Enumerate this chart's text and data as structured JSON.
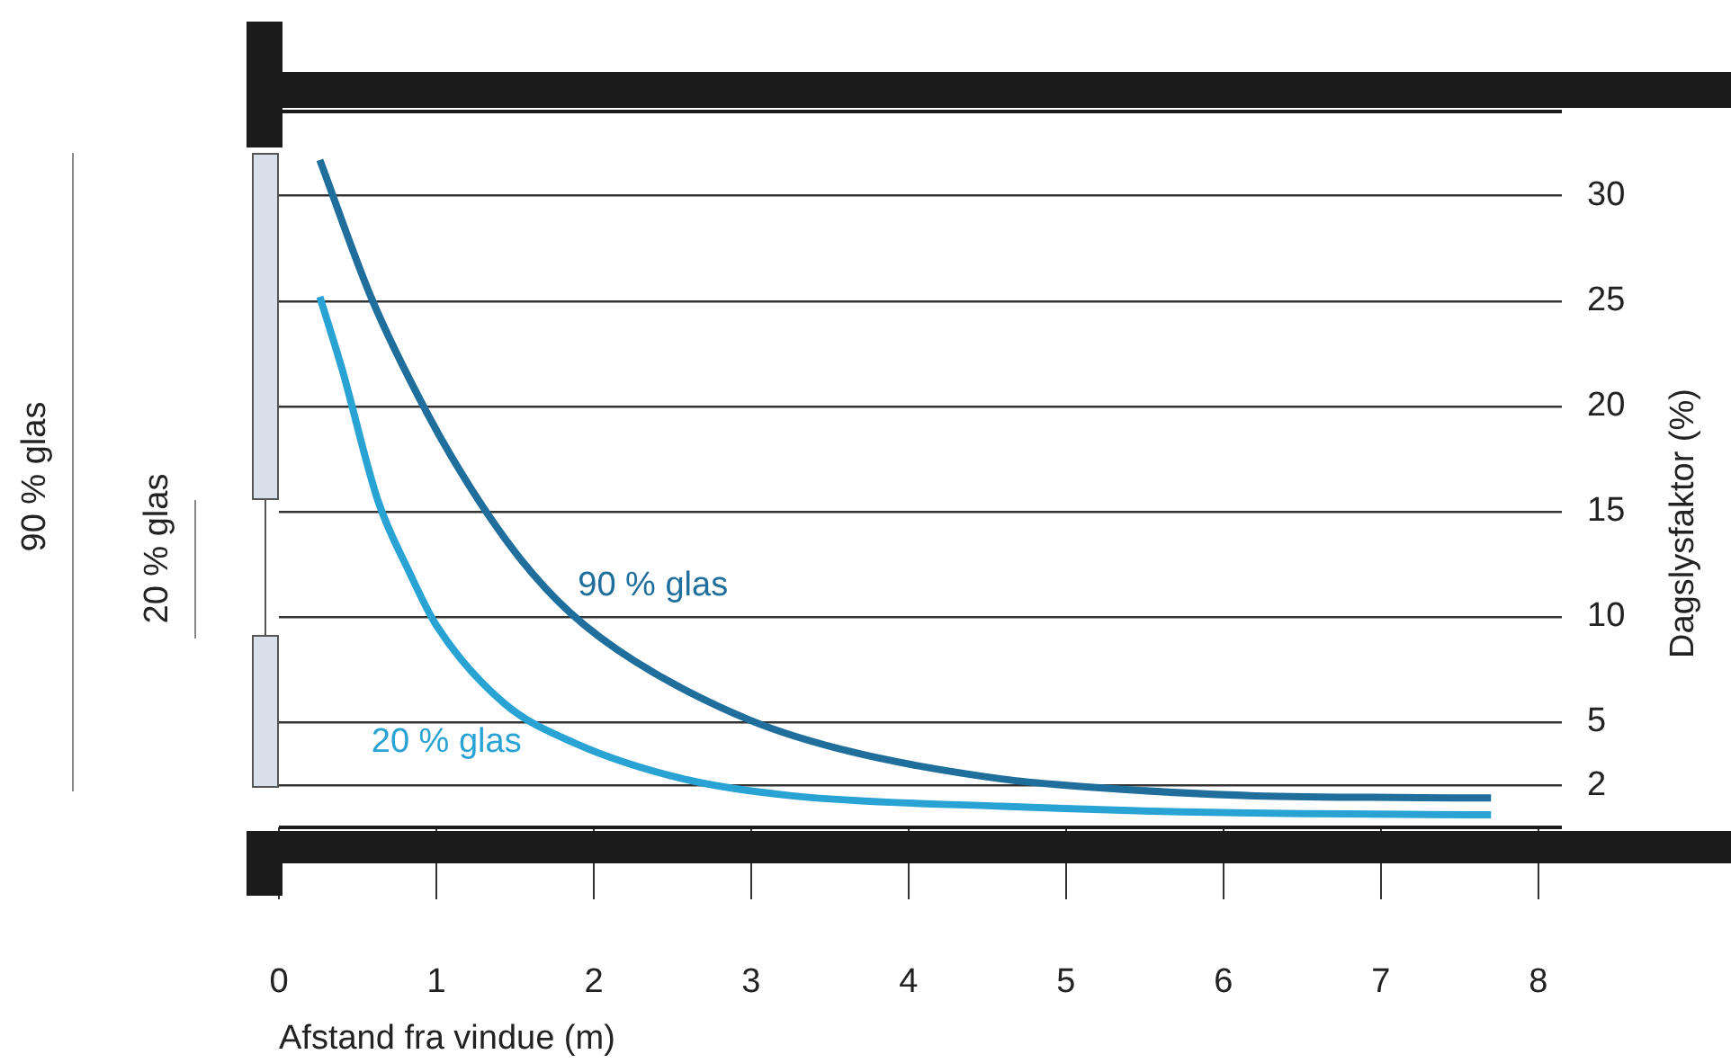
{
  "chart_data": {
    "type": "line",
    "xlabel": "Afstand fra vindue (m)",
    "ylabel": "Dagslysfaktor (%)",
    "xlim": [
      0,
      8.15
    ],
    "xticks": [
      0,
      1,
      2,
      3,
      4,
      5,
      6,
      7,
      8
    ],
    "ylim": [
      0,
      34
    ],
    "yticks": [
      2,
      5,
      10,
      15,
      20,
      25,
      30
    ],
    "grid": "y",
    "legend": false,
    "marker": "none",
    "line_style": "solid",
    "annotations": [
      "90 % glas",
      "20 % glas"
    ],
    "series": [
      {
        "name": "90 % glas",
        "color": "#1f6e9c",
        "x": [
          0.26,
          0.59,
          0.94,
          1.22,
          1.54,
          1.85,
          2.26,
          2.99,
          3.63,
          4.59,
          5.0,
          6.2,
          7.7
        ],
        "values": [
          31.7,
          25.1,
          19.7,
          16.1,
          12.7,
          10.2,
          7.9,
          5.1,
          3.6,
          2.3,
          2.0,
          1.5,
          1.4
        ]
      },
      {
        "name": "20 % glas",
        "color": "#29a3d4",
        "x": [
          0.26,
          0.4,
          0.63,
          0.83,
          1.0,
          1.43,
          1.88,
          2.57,
          3.26,
          4.59,
          6.0,
          7.7
        ],
        "values": [
          25.2,
          21.8,
          15.5,
          12.1,
          9.6,
          5.9,
          4.0,
          2.3,
          1.5,
          1.0,
          0.7,
          0.6
        ]
      }
    ]
  }
}
